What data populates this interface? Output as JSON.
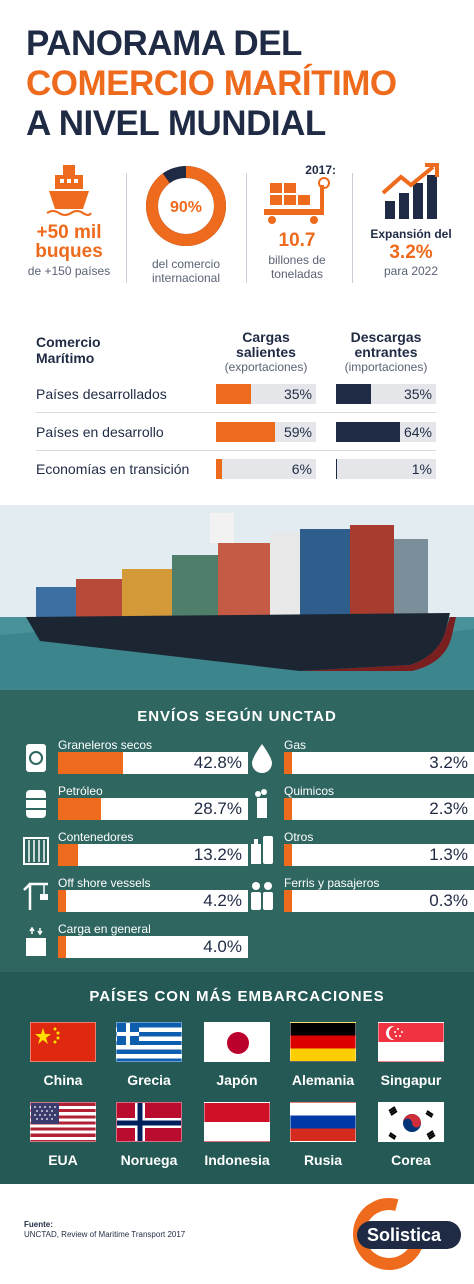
{
  "title": {
    "line1": "PANORAMA DEL",
    "line2": "COMERCIO MARÍTIMO",
    "line3": "A NIVEL MUNDIAL"
  },
  "stats": [
    {
      "big": "+50 mil buques",
      "small": "de +150 países"
    },
    {
      "big": "90%",
      "small": "del comercio internacional",
      "percent": 90
    },
    {
      "label": "2017:",
      "big": "10.7",
      "small": "billones de toneladas"
    },
    {
      "label": "Expansión del",
      "big": "3.2%",
      "small": "para 2022"
    }
  ],
  "trade_table": {
    "header": "Comercio Marítimo",
    "col1": {
      "title": "Cargas salientes",
      "sub": "(exportaciones)"
    },
    "col2": {
      "title": "Descargas entrantes",
      "sub": "(importaciones)"
    },
    "rows": [
      {
        "label": "Países desarrollados",
        "exp": "35%",
        "exp_value": 35,
        "imp": "35%",
        "imp_value": 35
      },
      {
        "label": "Países en desarrollo",
        "exp": "59%",
        "exp_value": 59,
        "imp": "64%",
        "imp_value": 64
      },
      {
        "label": "Economías en transición",
        "exp": "6%",
        "exp_value": 6,
        "imp": "1%",
        "imp_value": 1
      }
    ]
  },
  "envios": {
    "title": "ENVÍOS SEGÚN UNCTAD",
    "left": [
      {
        "name": "Graneleros secos",
        "value": "42.8%",
        "num": 42.8,
        "icon": "sack-icon"
      },
      {
        "name": "Petróleo",
        "value": "28.7%",
        "num": 28.7,
        "icon": "barrel-icon"
      },
      {
        "name": "Contenedores",
        "value": "13.2%",
        "num": 13.2,
        "icon": "container-icon"
      },
      {
        "name": "Off shore vessels",
        "value": "4.2%",
        "num": 4.2,
        "icon": "crane-icon"
      },
      {
        "name": "Carga en general",
        "value": "4.0%",
        "num": 4.0,
        "icon": "box-icon"
      }
    ],
    "right": [
      {
        "name": "Gas",
        "value": "3.2%",
        "num": 3.2,
        "icon": "drop-icon"
      },
      {
        "name": "Quimicos",
        "value": "2.3%",
        "num": 2.3,
        "icon": "factory-icon"
      },
      {
        "name": "Otros",
        "value": "1.3%",
        "num": 1.3,
        "icon": "bottles-icon"
      },
      {
        "name": "Ferris y pasajeros",
        "value": "0.3%",
        "num": 0.3,
        "icon": "people-icon"
      }
    ]
  },
  "paises": {
    "title": "PAÍSES CON MÁS EMBARCACIONES",
    "row1": [
      "China",
      "Grecia",
      "Japón",
      "Alemania",
      "Singapur"
    ],
    "row2": [
      "EUA",
      "Noruega",
      "Indonesia",
      "Rusia",
      "Corea"
    ]
  },
  "footer": {
    "source_label": "Fuente:",
    "source_text": "UNCTAD, Review of Maritime Transport 2017",
    "logo_text": "Solistica"
  },
  "colors": {
    "orange": "#ee6a1d",
    "navy": "#1f2a44",
    "teal": "#2f6660"
  }
}
